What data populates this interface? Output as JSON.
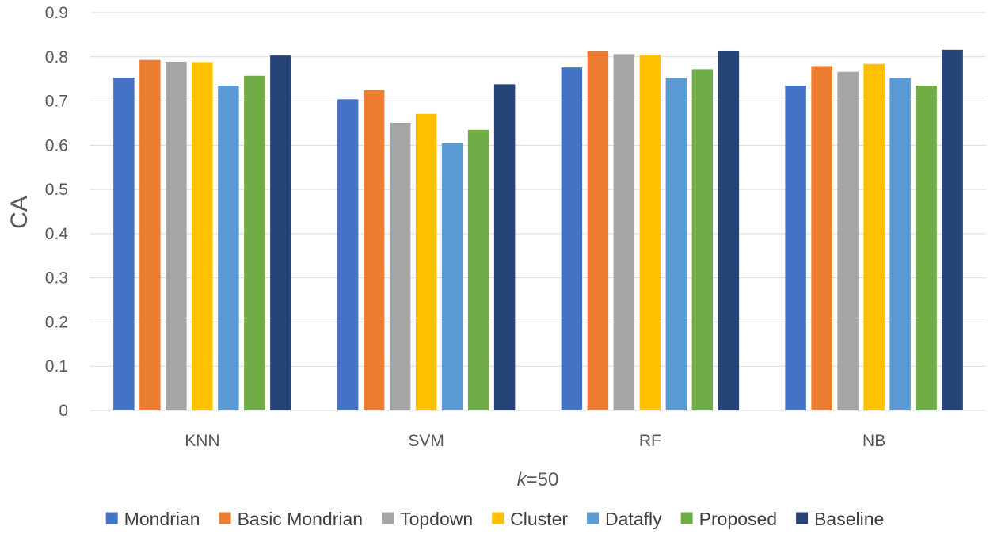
{
  "chart_data": {
    "type": "bar",
    "title": "",
    "xlabel_prefix": "k",
    "xlabel_suffix": "=50",
    "ylabel": "CA",
    "ylim": [
      0,
      0.9
    ],
    "yticks": [
      "0",
      "0.1",
      "0.2",
      "0.3",
      "0.4",
      "0.5",
      "0.6",
      "0.7",
      "0.8",
      "0.9"
    ],
    "grid": true,
    "legend_position": "bottom",
    "categories": [
      "KNN",
      "SVM",
      "RF",
      "NB"
    ],
    "series": [
      {
        "name": "Mondrian",
        "color": "#4472C4",
        "values": [
          0.753,
          0.704,
          0.776,
          0.735
        ]
      },
      {
        "name": "Basic Mondrian",
        "color": "#ED7D31",
        "values": [
          0.793,
          0.725,
          0.813,
          0.779
        ]
      },
      {
        "name": "Topdown",
        "color": "#A5A5A5",
        "values": [
          0.789,
          0.651,
          0.806,
          0.766
        ]
      },
      {
        "name": "Cluster",
        "color": "#FFC000",
        "values": [
          0.788,
          0.671,
          0.805,
          0.784
        ]
      },
      {
        "name": "Datafly",
        "color": "#5B9BD5",
        "values": [
          0.735,
          0.605,
          0.752,
          0.752
        ]
      },
      {
        "name": "Proposed",
        "color": "#70AD47",
        "values": [
          0.757,
          0.635,
          0.772,
          0.735
        ]
      },
      {
        "name": "Baseline",
        "color": "#264478",
        "values": [
          0.803,
          0.738,
          0.814,
          0.816
        ]
      }
    ]
  }
}
